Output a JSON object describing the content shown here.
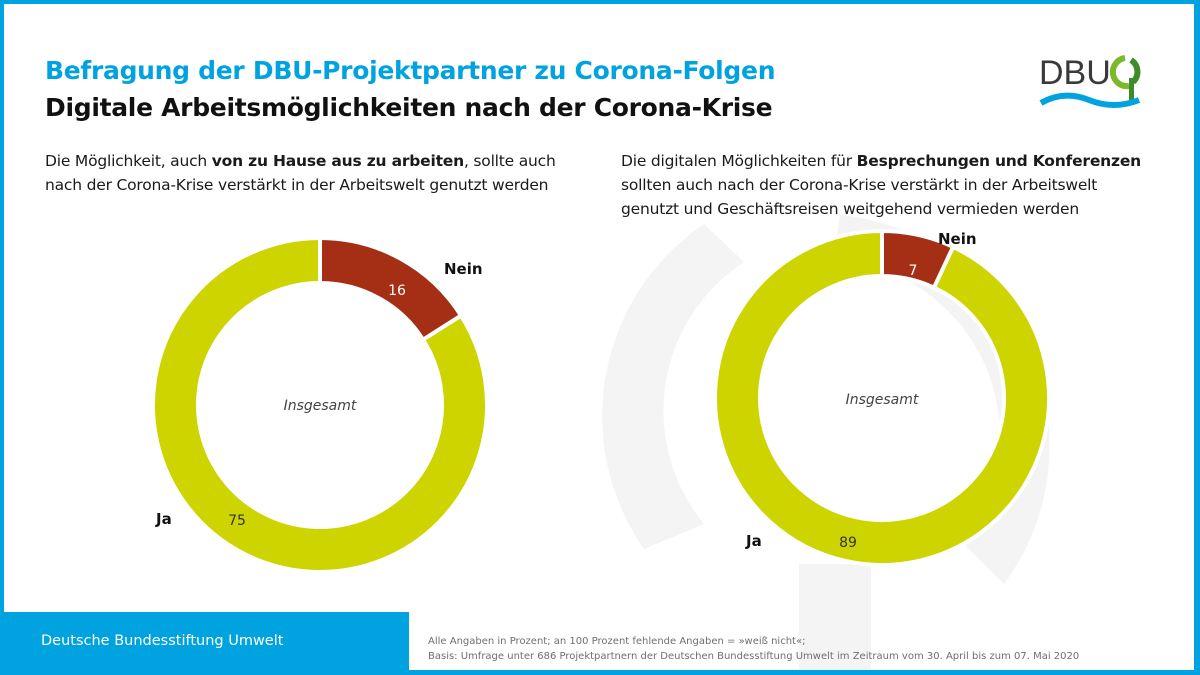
{
  "header": {
    "title": "Befragung der DBU-Projektpartner zu Corona-Folgen",
    "subtitle": "Digitale Arbeitsmöglichkeiten nach der Corona-Krise"
  },
  "logo": {
    "text": "DBU",
    "name": "dbu-logo"
  },
  "questions": [
    {
      "pre": "Die Möglichkeit, auch ",
      "bold": "von zu Hause aus zu arbeiten",
      "post": ", sollte auch",
      "line2": "nach der Corona-Krise verstärkt in der Arbeitswelt genutzt werden"
    },
    {
      "pre": "Die digitalen Möglichkeiten für ",
      "bold": "Besprechungen und Konferenzen",
      "post": "",
      "line2": "sollten auch nach der Corona-Krise verstärkt in der Arbeitswelt",
      "line3": "genutzt und Geschäftsreisen weitgehend vermieden werden"
    }
  ],
  "colors": {
    "brand_blue": "#00a3e0",
    "ja": "#cdd400",
    "nein": "#a52f15",
    "watermark": "#f4f4f4"
  },
  "chart_data": [
    {
      "type": "pie",
      "variant": "donut",
      "title": "Die Möglichkeit, auch von zu Hause aus zu arbeiten, sollte auch nach der Corona-Krise verstärkt in der Arbeitswelt genutzt werden",
      "center_label": "Insgesamt",
      "unit": "Prozent",
      "slices": [
        {
          "label": "Nein",
          "value": 16,
          "value_label": "16",
          "color": "#a52f15"
        },
        {
          "label": "Ja",
          "value": 75,
          "value_label": "75",
          "color": "#cdd400"
        }
      ],
      "note": "Ja segment visually fills remainder of ring"
    },
    {
      "type": "pie",
      "variant": "donut",
      "title": "Die digitalen Möglichkeiten für Besprechungen und Konferenzen sollten auch nach der Corona-Krise verstärkt in der Arbeitswelt genutzt und Geschäftsreisen weitgehend vermieden werden",
      "center_label": "Insgesamt",
      "unit": "Prozent",
      "slices": [
        {
          "label": "Nein",
          "value": 7,
          "value_label": "7",
          "color": "#a52f15"
        },
        {
          "label": "Ja",
          "value": 89,
          "value_label": "89",
          "color": "#cdd400"
        }
      ],
      "note": "Ja segment visually fills remainder of ring"
    }
  ],
  "footer": {
    "org": "Deutsche Bundesstiftung Umwelt",
    "note_line1": "Alle Angaben in Prozent; an 100 Prozent fehlende Angaben = »weiß nicht«;",
    "note_line2": "Basis: Umfrage unter 686 Projektpartnern der Deutschen Bundesstiftung Umwelt im Zeitraum vom 30. April bis zum 07. Mai 2020"
  }
}
